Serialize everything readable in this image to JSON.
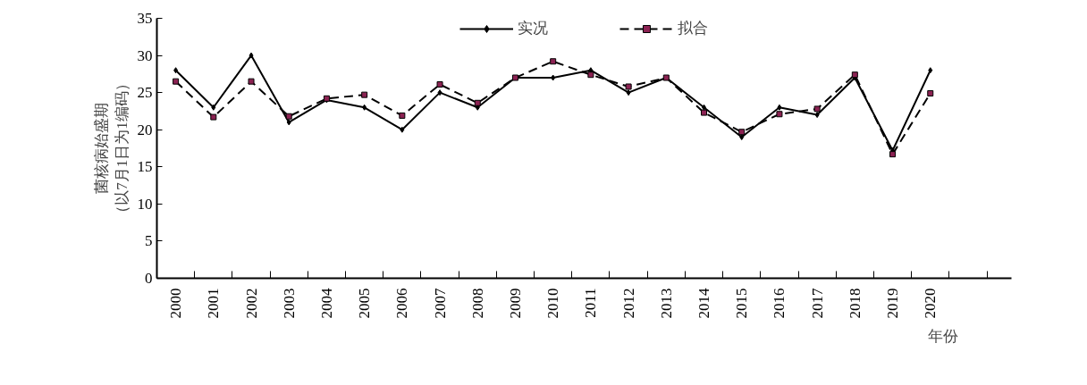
{
  "chart_data": {
    "type": "line",
    "xlabel": "年份",
    "ylabel": "菌核病始盛期（以7月1日为1编码）",
    "categories": [
      "2000",
      "2001",
      "2002",
      "2003",
      "2004",
      "2005",
      "2006",
      "2007",
      "2008",
      "2009",
      "2010",
      "2011",
      "2012",
      "2013",
      "2014",
      "2015",
      "2016",
      "2017",
      "2018",
      "2019",
      "2020"
    ],
    "series": [
      {
        "name": "实况",
        "color": "#000000",
        "line_style": "solid",
        "marker": "diamond",
        "values": [
          28,
          23,
          30,
          21,
          24,
          23,
          20,
          25,
          23,
          27,
          27,
          28,
          25,
          27,
          23,
          19,
          23,
          22,
          27,
          17.2,
          28
        ]
      },
      {
        "name": "拟合",
        "color": "#000000",
        "line_style": "dashed",
        "marker": "square",
        "values": [
          26.5,
          21.7,
          26.5,
          21.8,
          24.2,
          24.7,
          21.9,
          26.1,
          23.6,
          27,
          29.2,
          27.4,
          25.8,
          27,
          22.3,
          19.7,
          22.1,
          22.8,
          27.4,
          16.7,
          24.9
        ]
      }
    ],
    "ylim": [
      0,
      35
    ],
    "yticks": [
      0,
      5,
      10,
      15,
      20,
      25,
      30,
      35
    ],
    "grid": false,
    "legend": "top"
  }
}
